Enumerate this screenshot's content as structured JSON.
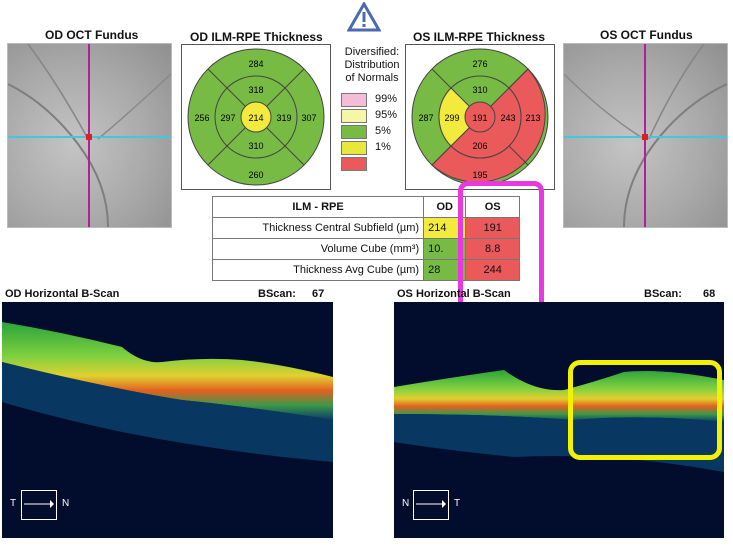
{
  "warning_icon": "warning-triangle-icon",
  "od_fundus": {
    "title": "OD OCT Fundus"
  },
  "os_fundus": {
    "title": "OS OCT Fundus"
  },
  "od_thickness": {
    "title": "OD ILM-RPE Thickness",
    "center": "214",
    "inner_superior": "318",
    "inner_nasal": "319",
    "inner_inferior": "310",
    "inner_temporal": "297",
    "outer_superior": "284",
    "outer_nasal": "307",
    "outer_inferior": "260",
    "outer_temporal": "256"
  },
  "os_thickness": {
    "title": "OS ILM-RPE Thickness",
    "center": "191",
    "inner_superior": "310",
    "inner_nasal": "299",
    "inner_inferior": "206",
    "inner_temporal": "243",
    "outer_superior": "276",
    "outer_nasal": "287",
    "outer_inferior": "195",
    "outer_temporal": "213"
  },
  "legend": {
    "title_line1": "Diversified:",
    "title_line2": "Distribution",
    "title_line3": "of Normals",
    "items": [
      {
        "label": "99%",
        "color": "#f4bcd6"
      },
      {
        "label": "95%",
        "color": "#f6f6a8"
      },
      {
        "label": "5%",
        "color": "#77bb44"
      },
      {
        "label": "1%",
        "color": "#e8e83a"
      },
      {
        "label": "",
        "color": "#ea5a5a"
      }
    ]
  },
  "ilm_table": {
    "header": {
      "label": "ILM - RPE",
      "od": "OD",
      "os": "OS"
    },
    "rows": [
      {
        "label": "Thickness Central Subfield (µm)",
        "od": "214",
        "os": "191"
      },
      {
        "label": "Volume Cube (mm³)",
        "od": "10.",
        "os": "8.8"
      },
      {
        "label": "Thickness Avg Cube (µm)",
        "od": "28",
        "os": "244"
      }
    ]
  },
  "od_bscan": {
    "title": "OD Horizontal B-Scan",
    "bscan_label": "BScan:",
    "bscan_num": "67",
    "orient_left": "T",
    "orient_right": "N"
  },
  "os_bscan": {
    "title": "OS Horizontal B-Scan",
    "bscan_label": "BScan:",
    "bscan_num": "68",
    "orient_left": "N",
    "orient_right": "T"
  },
  "colors": {
    "green": "#77bb44",
    "red": "#ea5a5a",
    "yellow": "#f2ea3c",
    "magenta_highlight": "#e838e0",
    "yellow_highlight": "#f2f200"
  }
}
